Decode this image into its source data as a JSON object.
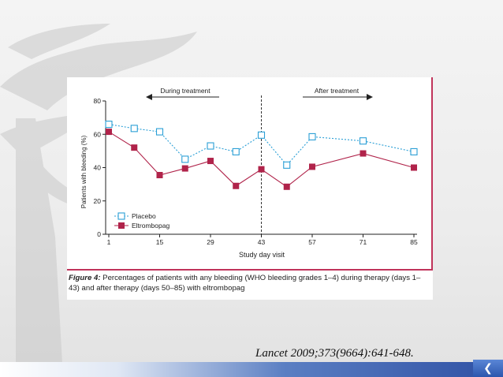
{
  "chart_data": {
    "type": "line",
    "ylabel": "Patients with bleeding (%)",
    "xlabel": "Study day visit",
    "ylim": [
      0,
      80
    ],
    "yticks": [
      0,
      20,
      40,
      60,
      80
    ],
    "xlim": [
      1,
      85
    ],
    "xticks": [
      1,
      15,
      29,
      43,
      57,
      71,
      85
    ],
    "divider_x": 43,
    "annotations": {
      "during": "During treatment",
      "after": "After treatment"
    },
    "legend_position": "bottom-left",
    "series": [
      {
        "name": "Placebo",
        "color": "#2a9fd6",
        "marker": "open-square",
        "line": "dotted",
        "x": [
          1,
          8,
          15,
          22,
          29,
          36,
          43,
          50,
          57,
          71,
          85
        ],
        "y": [
          66,
          63.5,
          61.5,
          45,
          53,
          49.5,
          59.5,
          41.5,
          58.5,
          56,
          49.5
        ]
      },
      {
        "name": "Eltrombopag",
        "color": "#b0234a",
        "marker": "filled-square",
        "line": "solid",
        "x": [
          1,
          8,
          15,
          22,
          29,
          36,
          43,
          50,
          57,
          71,
          85
        ],
        "y": [
          61.5,
          52,
          35.5,
          39.5,
          44,
          29,
          39,
          28.5,
          40.5,
          48.5,
          40
        ]
      }
    ]
  },
  "caption": {
    "label": "Figure 4:",
    "text": " Percentages of patients with any bleeding (WHO bleeding grades 1–4) during therapy (days 1–43) and after therapy (days 50–85) with eltrombopag"
  },
  "citation": "Lancet 2009;373(9664):641-648.",
  "nav": {
    "back_symbol": "❮"
  }
}
